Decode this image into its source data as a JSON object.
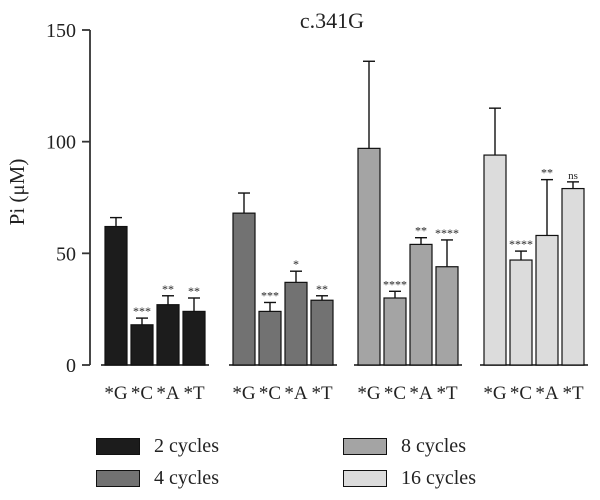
{
  "chart_data": {
    "type": "bar",
    "title": "c.341G",
    "xlabel": "",
    "ylabel": "Pi (μM)",
    "ylim": [
      0,
      150
    ],
    "yticks": [
      0,
      50,
      100,
      150
    ],
    "grid": false,
    "legend_position": "bottom",
    "categories": [
      "*G",
      "*C",
      "*A",
      "*T"
    ],
    "series": [
      {
        "name": "2 cycles",
        "color": "#1c1c1c",
        "values": [
          62,
          18,
          27,
          24
        ],
        "errors": [
          4,
          3,
          4,
          6
        ],
        "significance": [
          "",
          "***",
          "**",
          "**"
        ]
      },
      {
        "name": "4 cycles",
        "color": "#727272",
        "values": [
          68,
          24,
          37,
          29
        ],
        "errors": [
          9,
          4,
          5,
          2
        ],
        "significance": [
          "",
          "***",
          "*",
          "**"
        ]
      },
      {
        "name": "8 cycles",
        "color": "#a4a4a4",
        "values": [
          97,
          30,
          54,
          44
        ],
        "errors": [
          39,
          3,
          3,
          12
        ],
        "significance": [
          "",
          "****",
          "**",
          "****"
        ]
      },
      {
        "name": "16 cycles",
        "color": "#dcdcdc",
        "values": [
          94,
          47,
          58,
          79
        ],
        "errors": [
          21,
          4,
          25,
          3
        ],
        "significance": [
          "",
          "****",
          "**",
          "ns"
        ]
      }
    ]
  }
}
